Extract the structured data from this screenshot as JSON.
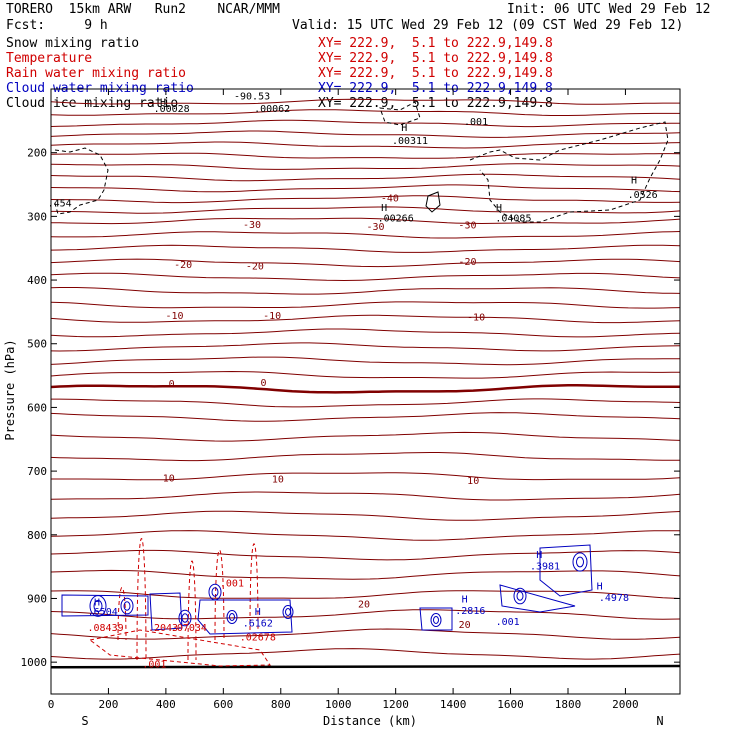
{
  "header": {
    "model": "TORERO  15km ARW   Run2    NCAR/MMM",
    "init": "Init: 06 UTC Wed 29 Feb 12",
    "fcst": "Fcst:     9 h",
    "valid": "Valid: 15 UTC Wed 29 Feb 12 (09 CST Wed 29 Feb 12)"
  },
  "legend": [
    {
      "name": "Snow mixing ratio",
      "color": "#000000",
      "xy": "XY= 222.9,  5.1 to 222.9,149.8",
      "xy_color": "#d00000"
    },
    {
      "name": "Temperature",
      "color": "#d00000",
      "xy": "XY= 222.9,  5.1 to 222.9,149.8",
      "xy_color": "#d00000"
    },
    {
      "name": "Rain water mixing ratio",
      "color": "#d00000",
      "xy": "XY= 222.9,  5.1 to 222.9,149.8",
      "xy_color": "#d00000"
    },
    {
      "name": "Cloud water mixing ratio",
      "color": "#0000c0",
      "xy": "XY= 222.9,  5.1 to 222.9,149.8",
      "xy_color": "#0000c0"
    },
    {
      "name": "Cloud ice mixing ratio",
      "color": "#000000",
      "xy": "XY= 222.9,  5.1 to 222.9,149.8",
      "xy_color": "#000000"
    }
  ],
  "chart_data": {
    "type": "contour",
    "xlabel": "Distance (km)",
    "ylabel": "Pressure (hPa)",
    "xlim": [
      0,
      2190
    ],
    "ylim": [
      1050,
      100
    ],
    "x_ticks": [
      0,
      200,
      400,
      600,
      800,
      1000,
      1200,
      1400,
      1600,
      1800,
      2000
    ],
    "y_ticks": [
      200,
      300,
      400,
      500,
      600,
      700,
      800,
      900,
      1000
    ],
    "end_labels": {
      "left": "S",
      "right": "N"
    },
    "isotherms": [
      {
        "label": "-40",
        "pressure": 270
      },
      {
        "label": "-30",
        "pressure": 315
      },
      {
        "label": "-20",
        "pressure": 375
      },
      {
        "label": "-10",
        "pressure": 460
      },
      {
        "label": "0",
        "pressure": 565
      },
      {
        "label": "10",
        "pressure": 710
      },
      {
        "label": "20",
        "pressure": 910
      }
    ],
    "temp_labels": [
      {
        "text": "-40",
        "x": 1180,
        "p": 270
      },
      {
        "text": "-30",
        "x": 700,
        "p": 312
      },
      {
        "text": "-30",
        "x": 1130,
        "p": 315
      },
      {
        "text": "-30",
        "x": 1450,
        "p": 313
      },
      {
        "text": "-20",
        "x": 460,
        "p": 375
      },
      {
        "text": "-20",
        "x": 710,
        "p": 377
      },
      {
        "text": "-20",
        "x": 1450,
        "p": 370
      },
      {
        "text": "-10",
        "x": 430,
        "p": 455
      },
      {
        "text": "-10",
        "x": 770,
        "p": 455
      },
      {
        "text": "-10",
        "x": 1480,
        "p": 457
      },
      {
        "text": "0",
        "x": 420,
        "p": 562
      },
      {
        "text": "0",
        "x": 740,
        "p": 560
      },
      {
        "text": "10",
        "x": 410,
        "p": 710
      },
      {
        "text": "10",
        "x": 790,
        "p": 712
      },
      {
        "text": "10",
        "x": 1470,
        "p": 714
      },
      {
        "text": "20",
        "x": 1090,
        "p": 908
      },
      {
        "text": "20",
        "x": 1440,
        "p": 940
      }
    ],
    "annotations": [
      {
        "text": "H",
        "x": 390,
        "p": 120,
        "color": "#000000"
      },
      {
        "text": ".00028",
        "x": 420,
        "p": 130,
        "color": "#000000"
      },
      {
        "text": "-90.53",
        "x": 700,
        "p": 110,
        "color": "#000000"
      },
      {
        "text": ".00062",
        "x": 770,
        "p": 130,
        "color": "#000000"
      },
      {
        "text": "H",
        "x": 1230,
        "p": 160,
        "color": "#000000"
      },
      {
        "text": ".00311",
        "x": 1250,
        "p": 180,
        "color": "#000000"
      },
      {
        "text": ".001",
        "x": 1480,
        "p": 150,
        "color": "#000000"
      },
      {
        "text": "H",
        "x": 2030,
        "p": 242,
        "color": "#000000"
      },
      {
        "text": ".0526",
        "x": 2060,
        "p": 265,
        "color": "#000000"
      },
      {
        "text": ".454",
        "x": 30,
        "p": 278,
        "color": "#000000"
      },
      {
        "text": "H",
        "x": 1160,
        "p": 285,
        "color": "#000000"
      },
      {
        "text": ".00266",
        "x": 1200,
        "p": 302,
        "color": "#000000"
      },
      {
        "text": "H",
        "x": 1560,
        "p": 285,
        "color": "#000000"
      },
      {
        "text": ".04085",
        "x": 1610,
        "p": 302,
        "color": "#000000"
      },
      {
        "text": ".001",
        "x": 630,
        "p": 875,
        "color": "#d00000"
      },
      {
        "text": "H",
        "x": 160,
        "p": 905,
        "color": "#0000c0"
      },
      {
        "text": ".6504",
        "x": 180,
        "p": 920,
        "color": "#0000c0"
      },
      {
        "text": ".08439",
        "x": 190,
        "p": 945,
        "color": "#d00000"
      },
      {
        "text": ".2043",
        "x": 390,
        "p": 945,
        "color": "#d00000"
      },
      {
        "text": ".07034",
        "x": 480,
        "p": 945,
        "color": "#d00000"
      },
      {
        "text": "H",
        "x": 720,
        "p": 920,
        "color": "#0000c0"
      },
      {
        "text": ".6162",
        "x": 720,
        "p": 938,
        "color": "#0000c0"
      },
      {
        "text": ".02678",
        "x": 720,
        "p": 960,
        "color": "#d00000"
      },
      {
        "text": ".001",
        "x": 360,
        "p": 1002,
        "color": "#d00000"
      },
      {
        "text": "H",
        "x": 1440,
        "p": 900,
        "color": "#0000c0"
      },
      {
        "text": ".2816",
        "x": 1460,
        "p": 918,
        "color": "#0000c0"
      },
      {
        "text": ".001",
        "x": 1590,
        "p": 935,
        "color": "#0000c0"
      },
      {
        "text": "H",
        "x": 1700,
        "p": 830,
        "color": "#0000c0"
      },
      {
        "text": ".3981",
        "x": 1720,
        "p": 848,
        "color": "#0000c0"
      },
      {
        "text": "H",
        "x": 1910,
        "p": 880,
        "color": "#0000c0"
      },
      {
        "text": ".4978",
        "x": 1960,
        "p": 898,
        "color": "#0000c0"
      }
    ]
  }
}
